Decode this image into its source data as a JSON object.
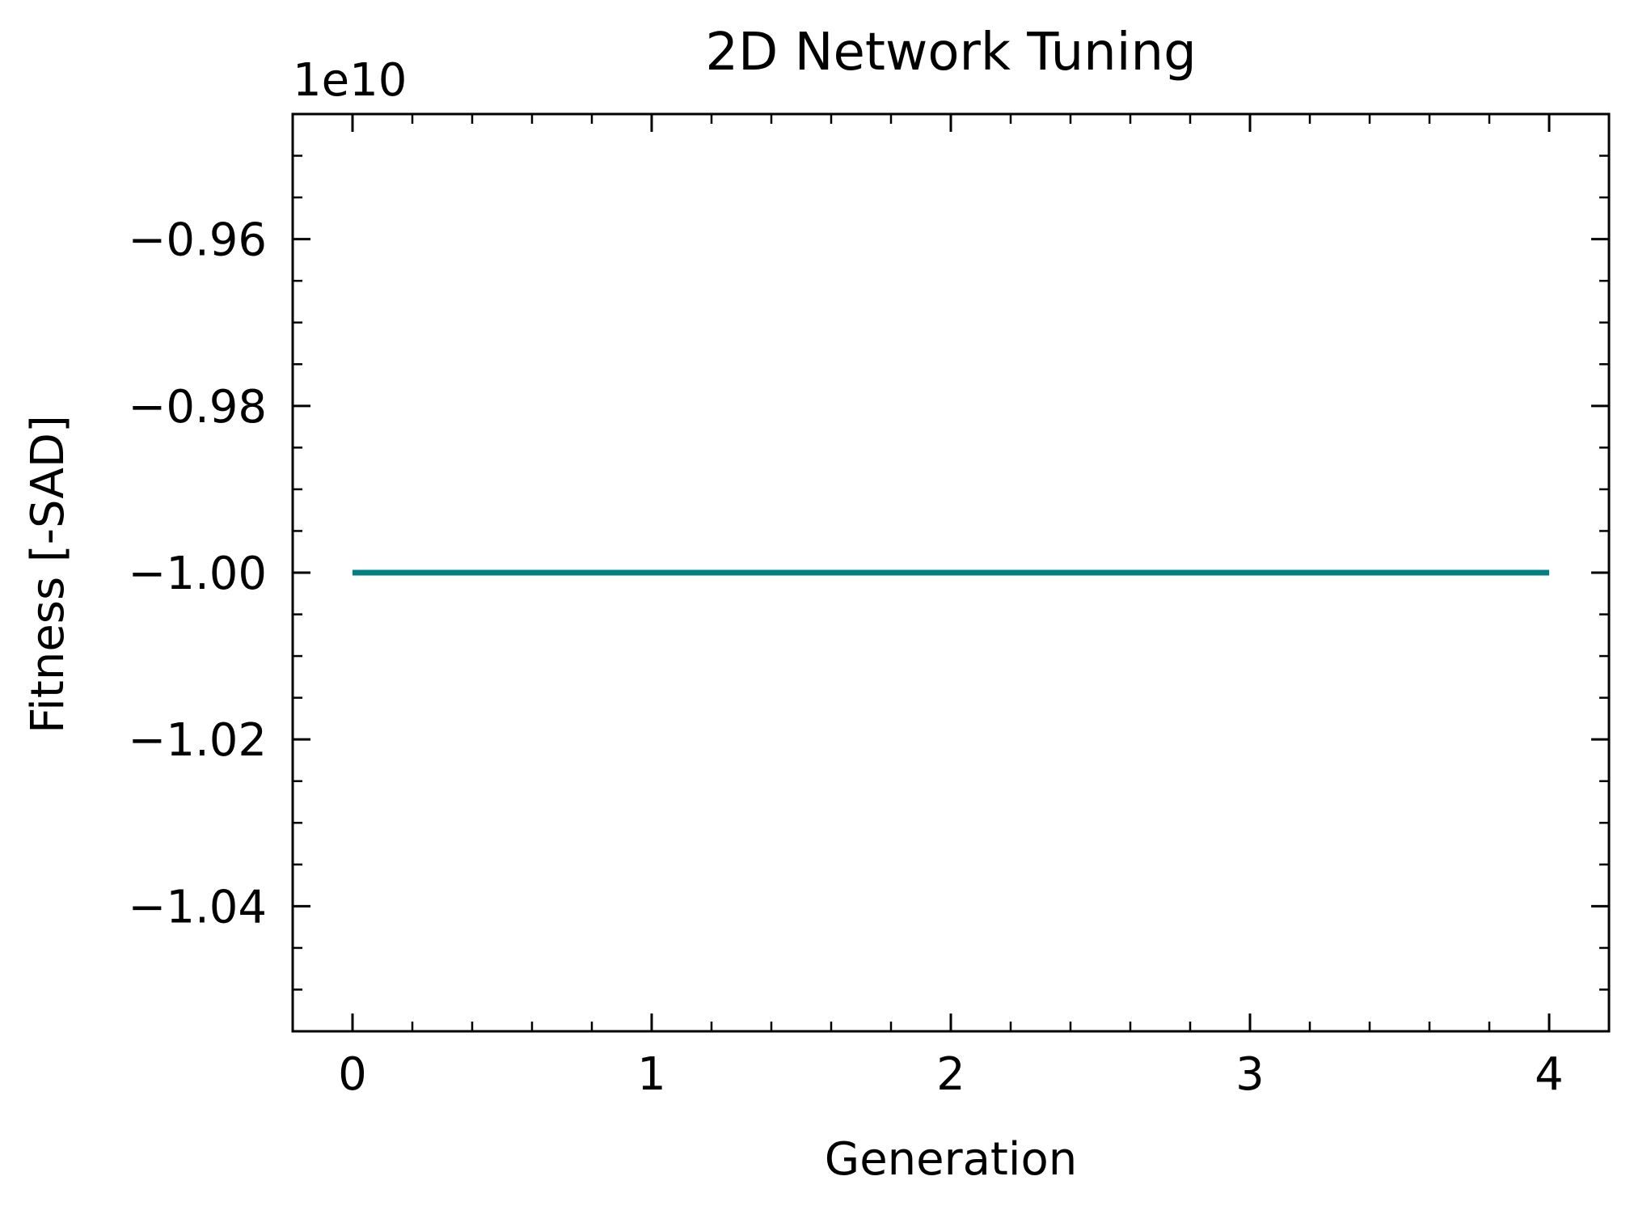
{
  "chart_data": {
    "type": "line",
    "title": "2D Network Tuning",
    "xlabel": "Generation",
    "ylabel": "Fitness [-SAD]",
    "y_offset_label": "1e10",
    "xlim": [
      -0.2,
      4.2
    ],
    "ylim": [
      -1.055,
      -0.945
    ],
    "x_ticks": [
      0,
      1,
      2,
      3,
      4
    ],
    "x_tick_labels": [
      "0",
      "1",
      "2",
      "3",
      "4"
    ],
    "y_ticks": [
      -0.96,
      -0.98,
      -1.0,
      -1.02,
      -1.04
    ],
    "y_tick_labels": [
      "−0.96",
      "−0.98",
      "−1.00",
      "−1.02",
      "−1.04"
    ],
    "grid": false,
    "series": [
      {
        "x": [
          0,
          1,
          2,
          3,
          4
        ],
        "values": [
          -1.0,
          -1.0,
          -1.0,
          -1.0,
          -1.0
        ],
        "color": "#008080"
      }
    ]
  }
}
